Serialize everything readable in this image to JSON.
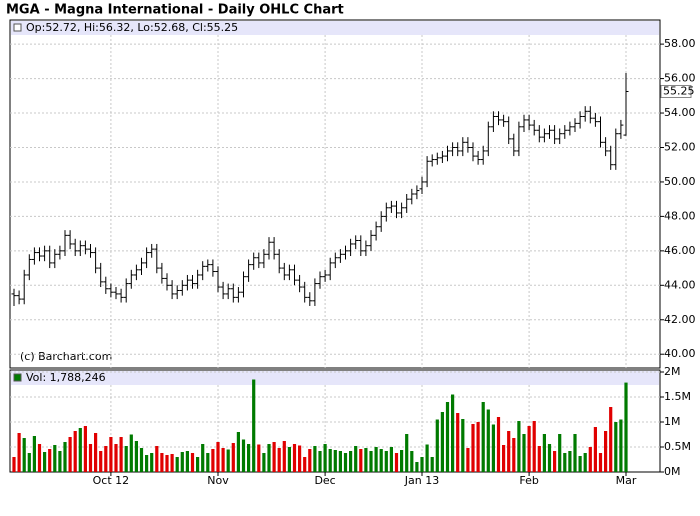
{
  "chart_data": {
    "type": "ohlc",
    "title": "MGA - Magna International - Daily OHLC Chart",
    "header": "Op:52.72, Hi:56.32, Lo:52.68, Cl:55.25",
    "volume_header": "Vol: 1,788,246",
    "credit": "(c) Barchart.com",
    "categories": [
      null,
      null,
      null,
      null,
      null,
      null,
      null,
      null,
      null,
      null,
      null,
      null,
      null,
      null,
      null,
      null,
      null,
      null,
      null,
      "Oct 12",
      null,
      null,
      null,
      null,
      null,
      null,
      null,
      null,
      null,
      null,
      null,
      null,
      null,
      null,
      null,
      null,
      null,
      null,
      null,
      null,
      "Nov",
      null,
      null,
      null,
      null,
      null,
      null,
      null,
      null,
      null,
      null,
      null,
      null,
      null,
      null,
      null,
      null,
      null,
      null,
      null,
      null,
      "Dec",
      null,
      null,
      null,
      null,
      null,
      null,
      null,
      null,
      null,
      null,
      null,
      null,
      null,
      null,
      null,
      null,
      null,
      null,
      "Jan 13",
      null,
      null,
      null,
      null,
      null,
      null,
      null,
      null,
      null,
      null,
      null,
      null,
      null,
      null,
      null,
      null,
      null,
      null,
      null,
      null,
      "Feb",
      null,
      null,
      null,
      null,
      null,
      null,
      null,
      null,
      null,
      null,
      null,
      null,
      null,
      null,
      null,
      null,
      null,
      null,
      "Mar"
    ],
    "open": [
      43.5,
      43.4,
      43.2,
      44.6,
      45.5,
      45.9,
      45.7,
      46.0,
      45.3,
      45.8,
      46.0,
      46.9,
      46.4,
      46.0,
      46.3,
      46.1,
      45.9,
      45.0,
      44.2,
      43.8,
      43.6,
      43.5,
      43.3,
      44.1,
      44.6,
      44.9,
      45.3,
      45.9,
      46.1,
      45.0,
      44.4,
      44.0,
      43.5,
      43.7,
      44.0,
      44.3,
      44.1,
      44.6,
      45.1,
      45.2,
      44.8,
      43.9,
      43.5,
      43.8,
      43.3,
      43.6,
      44.5,
      45.2,
      45.6,
      45.3,
      45.8,
      46.5,
      45.8,
      45.0,
      44.6,
      44.9,
      44.3,
      43.9,
      43.3,
      43.1,
      44.1,
      44.5,
      44.6,
      45.3,
      45.6,
      45.8,
      46.0,
      46.4,
      46.6,
      46.0,
      46.3,
      46.9,
      47.4,
      48.0,
      48.5,
      48.6,
      48.2,
      48.5,
      49.0,
      49.3,
      49.6,
      50.0,
      51.2,
      51.3,
      51.4,
      51.5,
      51.8,
      52.0,
      51.8,
      52.3,
      52.0,
      51.5,
      51.3,
      51.8,
      53.2,
      53.8,
      53.6,
      53.5,
      52.5,
      51.8,
      53.2,
      53.6,
      53.3,
      53.0,
      52.6,
      52.8,
      53.0,
      52.5,
      52.8,
      53.0,
      53.2,
      53.4,
      53.8,
      54.1,
      53.7,
      53.5,
      52.3,
      51.8,
      51.0,
      52.8,
      52.72
    ],
    "high": [
      43.8,
      43.7,
      44.9,
      45.8,
      46.2,
      46.2,
      46.3,
      46.3,
      46.1,
      46.3,
      47.2,
      47.2,
      46.7,
      46.6,
      46.6,
      46.4,
      46.2,
      45.3,
      44.5,
      44.1,
      43.9,
      43.8,
      44.4,
      44.9,
      45.2,
      45.6,
      46.2,
      46.4,
      46.4,
      45.3,
      44.7,
      44.3,
      44.0,
      44.3,
      44.6,
      44.6,
      44.9,
      45.4,
      45.5,
      45.5,
      45.1,
      44.2,
      44.1,
      44.1,
      43.9,
      44.8,
      45.5,
      45.9,
      45.9,
      46.1,
      46.8,
      46.8,
      46.1,
      45.3,
      45.2,
      45.2,
      44.6,
      44.2,
      43.6,
      44.4,
      44.8,
      44.9,
      45.6,
      45.9,
      46.1,
      46.3,
      46.7,
      46.9,
      46.9,
      46.6,
      47.2,
      47.7,
      48.3,
      48.8,
      48.9,
      48.9,
      48.8,
      49.3,
      49.6,
      49.8,
      50.3,
      51.5,
      51.6,
      51.7,
      51.8,
      52.1,
      52.3,
      52.3,
      52.6,
      52.6,
      52.3,
      51.8,
      52.1,
      53.5,
      54.1,
      54.1,
      53.9,
      53.8,
      52.8,
      53.5,
      53.9,
      53.9,
      53.6,
      53.3,
      53.1,
      53.3,
      53.3,
      53.1,
      53.3,
      53.5,
      53.7,
      54.1,
      54.4,
      54.4,
      54.0,
      53.8,
      52.6,
      52.1,
      53.1,
      53.6,
      56.32
    ],
    "low": [
      42.8,
      42.9,
      42.9,
      44.3,
      45.2,
      45.4,
      45.4,
      45.0,
      45.0,
      45.5,
      45.7,
      46.1,
      45.7,
      45.7,
      45.8,
      45.6,
      44.7,
      43.9,
      43.5,
      43.3,
      43.2,
      43.0,
      43.0,
      43.8,
      44.3,
      44.6,
      45.0,
      45.6,
      44.7,
      44.1,
      43.7,
      43.2,
      43.2,
      43.4,
      43.7,
      43.8,
      43.8,
      44.3,
      44.8,
      44.5,
      43.6,
      43.2,
      43.2,
      43.0,
      43.0,
      43.3,
      44.2,
      44.9,
      45.0,
      45.0,
      45.5,
      45.5,
      44.7,
      44.3,
      44.3,
      44.0,
      43.6,
      43.0,
      42.8,
      42.8,
      43.8,
      44.2,
      44.3,
      45.0,
      45.3,
      45.5,
      45.7,
      46.1,
      45.7,
      45.7,
      46.0,
      46.6,
      47.1,
      47.7,
      48.2,
      47.9,
      47.9,
      48.2,
      48.7,
      49.0,
      49.3,
      49.7,
      50.9,
      51.0,
      51.1,
      51.2,
      51.5,
      51.5,
      51.5,
      51.7,
      51.2,
      51.0,
      51.0,
      51.5,
      52.9,
      53.3,
      53.2,
      52.2,
      51.5,
      51.5,
      52.9,
      53.0,
      52.7,
      52.3,
      52.3,
      52.5,
      52.2,
      52.2,
      52.5,
      52.7,
      52.9,
      53.1,
      53.5,
      53.4,
      53.2,
      52.0,
      51.5,
      50.7,
      50.7,
      52.5,
      52.68
    ],
    "close": [
      43.4,
      43.2,
      44.6,
      45.5,
      45.9,
      45.7,
      46.0,
      45.3,
      45.8,
      46.0,
      46.9,
      46.4,
      46.0,
      46.3,
      46.1,
      45.9,
      45.0,
      44.2,
      43.8,
      43.6,
      43.5,
      43.3,
      44.1,
      44.6,
      44.9,
      45.3,
      45.9,
      46.1,
      45.0,
      44.4,
      44.0,
      43.5,
      43.7,
      44.0,
      44.3,
      44.1,
      44.6,
      45.1,
      45.2,
      44.8,
      43.9,
      43.5,
      43.8,
      43.3,
      43.6,
      44.5,
      45.2,
      45.6,
      45.3,
      45.8,
      46.5,
      45.8,
      45.0,
      44.6,
      44.9,
      44.3,
      43.9,
      43.3,
      43.1,
      44.1,
      44.5,
      44.6,
      45.3,
      45.6,
      45.8,
      46.0,
      46.4,
      46.6,
      46.0,
      46.3,
      46.9,
      47.4,
      48.0,
      48.5,
      48.6,
      48.2,
      48.5,
      49.0,
      49.3,
      49.5,
      50.0,
      51.2,
      51.3,
      51.4,
      51.5,
      51.8,
      52.0,
      51.8,
      52.3,
      52.0,
      51.5,
      51.3,
      51.8,
      53.2,
      53.8,
      53.6,
      53.5,
      52.5,
      51.8,
      53.2,
      53.6,
      53.3,
      53.0,
      52.6,
      52.8,
      53.0,
      52.5,
      52.8,
      53.0,
      53.2,
      53.4,
      53.8,
      54.1,
      53.7,
      53.5,
      52.3,
      51.8,
      51.0,
      52.8,
      53.3,
      55.25
    ],
    "volume": [
      300000,
      780000,
      680000,
      380000,
      720000,
      560000,
      400000,
      460000,
      540000,
      420000,
      600000,
      700000,
      820000,
      880000,
      920000,
      560000,
      780000,
      420000,
      520000,
      700000,
      560000,
      700000,
      520000,
      750000,
      620000,
      480000,
      340000,
      380000,
      520000,
      380000,
      340000,
      360000,
      300000,
      400000,
      420000,
      380000,
      300000,
      560000,
      380000,
      460000,
      600000,
      480000,
      450000,
      580000,
      800000,
      650000,
      560000,
      1850000,
      550000,
      380000,
      560000,
      600000,
      480000,
      620000,
      500000,
      560000,
      530000,
      300000,
      460000,
      520000,
      420000,
      560000,
      460000,
      440000,
      420000,
      380000,
      420000,
      520000,
      460000,
      480000,
      420000,
      500000,
      460000,
      420000,
      500000,
      380000,
      440000,
      760000,
      420000,
      200000,
      300000,
      550000,
      300000,
      1050000,
      1200000,
      1400000,
      1550000,
      1180000,
      1060000,
      480000,
      960000,
      1000000,
      1400000,
      1250000,
      950000,
      1100000,
      540000,
      820000,
      680000,
      1020000,
      760000,
      920000,
      1020000,
      520000,
      760000,
      560000,
      420000,
      760000,
      380000,
      420000,
      760000,
      320000,
      380000,
      500000,
      900000,
      380000,
      820000,
      1300000,
      1000000,
      1050000,
      1788246
    ],
    "ylim": [
      39.2,
      59.4
    ],
    "yticks": [
      {
        "value": 40,
        "label": "40.00"
      },
      {
        "value": 42,
        "label": "42.00"
      },
      {
        "value": 44,
        "label": "44.00"
      },
      {
        "value": 46,
        "label": "46.00"
      },
      {
        "value": 48,
        "label": "48.00"
      },
      {
        "value": 50,
        "label": "50.00"
      },
      {
        "value": 52,
        "label": "52.00"
      },
      {
        "value": 54,
        "label": "54.00"
      },
      {
        "value": 56,
        "label": "56.00"
      },
      {
        "value": 58,
        "label": "58.00"
      }
    ],
    "volume_ylim": [
      0,
      2000000
    ],
    "volume_yticks": [
      {
        "value": 0,
        "label": "0M"
      },
      {
        "value": 500000,
        "label": "0.5M"
      },
      {
        "value": 1000000,
        "label": "1M"
      },
      {
        "value": 1500000,
        "label": "1.5M"
      },
      {
        "value": 2000000,
        "label": "2M"
      }
    ],
    "bar_color": "#000000",
    "up_color": "#007a00",
    "down_color": "#e00000",
    "grid": true
  }
}
